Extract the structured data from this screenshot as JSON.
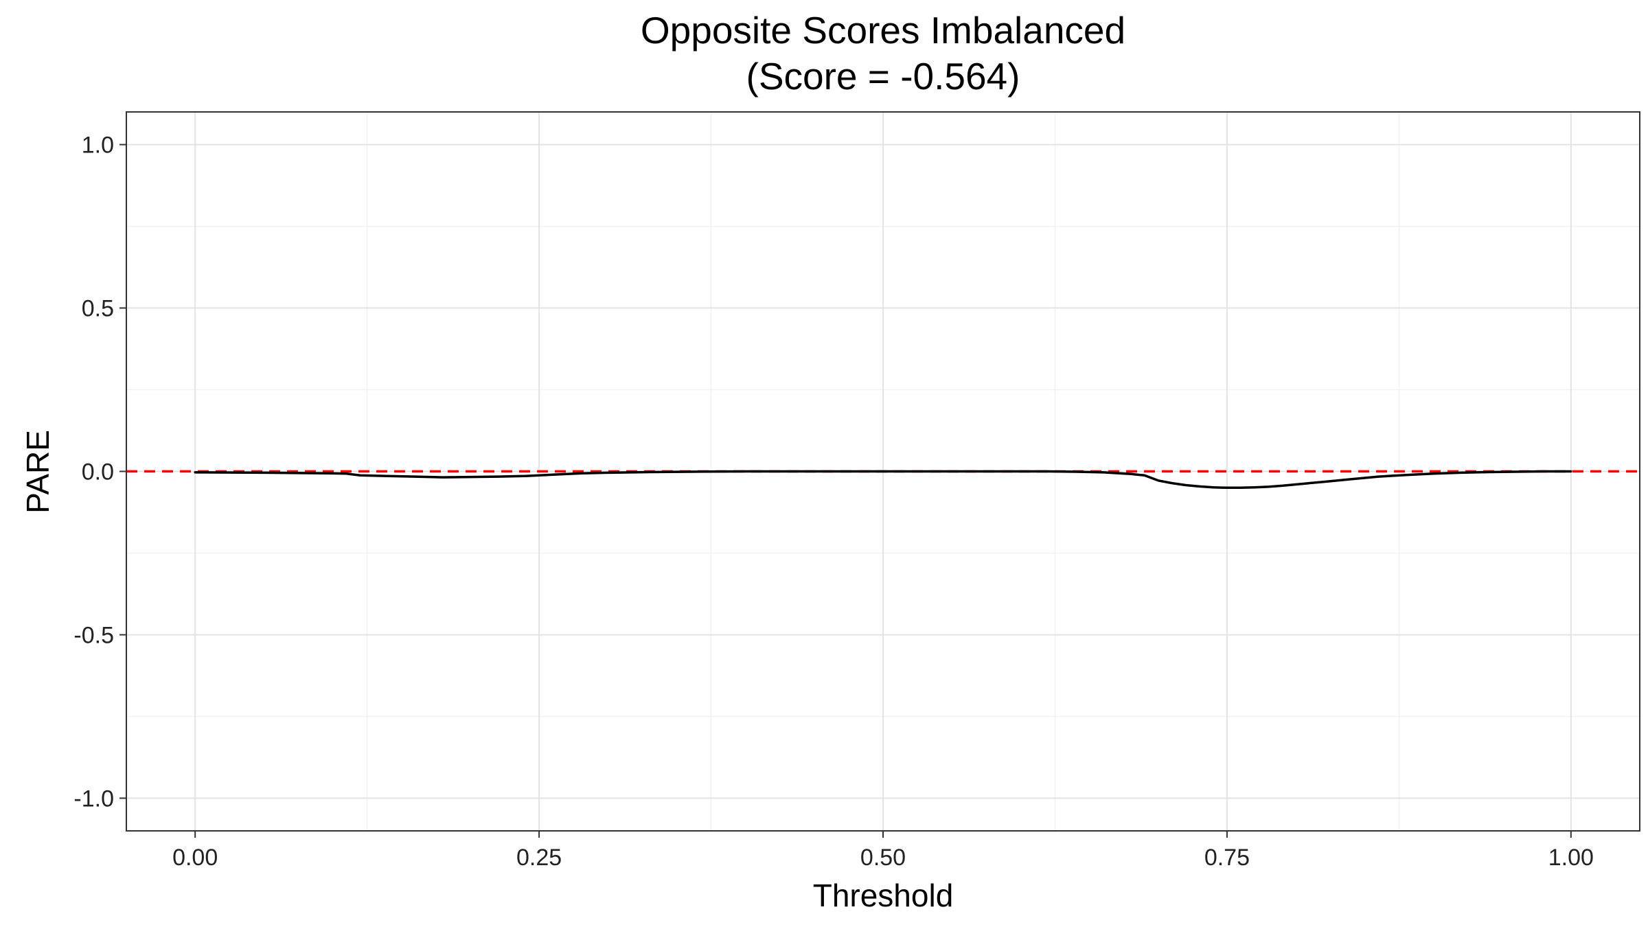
{
  "chart_data": {
    "type": "line",
    "title": "Opposite Scores Imbalanced",
    "subtitle": "(Score = -0.564)",
    "xlabel": "Threshold",
    "ylabel": "PARE",
    "xlim": [
      -0.05,
      1.05
    ],
    "ylim": [
      -1.1,
      1.1
    ],
    "x_ticks": [
      0.0,
      0.25,
      0.5,
      0.75,
      1.0
    ],
    "x_tick_labels": [
      "0.00",
      "0.25",
      "0.50",
      "0.75",
      "1.00"
    ],
    "y_ticks": [
      1.0,
      0.5,
      0.0,
      -0.5,
      -1.0
    ],
    "y_tick_labels": [
      "1.0",
      "0.5",
      "0.0",
      "-0.5",
      "-1.0"
    ],
    "x_minor_ticks": [
      0.125,
      0.375,
      0.625,
      0.875
    ],
    "y_minor_ticks": [
      0.75,
      0.25,
      -0.25,
      -0.75
    ],
    "grid": true,
    "series": [
      {
        "color": "#000000",
        "x": [
          0.0,
          0.05,
          0.1,
          0.11,
          0.12,
          0.14,
          0.16,
          0.18,
          0.2,
          0.22,
          0.24,
          0.26,
          0.28,
          0.3,
          0.33,
          0.36,
          0.4,
          0.45,
          0.5,
          0.55,
          0.6,
          0.62,
          0.64,
          0.66,
          0.68,
          0.69,
          0.7,
          0.71,
          0.72,
          0.73,
          0.74,
          0.75,
          0.76,
          0.77,
          0.78,
          0.79,
          0.8,
          0.82,
          0.84,
          0.86,
          0.88,
          0.9,
          0.92,
          0.94,
          0.96,
          0.98,
          1.0
        ],
        "y": [
          -0.003,
          -0.004,
          -0.006,
          -0.007,
          -0.012,
          -0.014,
          -0.016,
          -0.018,
          -0.017,
          -0.016,
          -0.014,
          -0.01,
          -0.006,
          -0.004,
          -0.002,
          -0.001,
          0.0,
          0.0,
          0.0,
          0.0,
          0.0,
          0.0,
          -0.001,
          -0.003,
          -0.008,
          -0.012,
          -0.028,
          -0.036,
          -0.042,
          -0.046,
          -0.049,
          -0.05,
          -0.05,
          -0.049,
          -0.047,
          -0.044,
          -0.04,
          -0.032,
          -0.024,
          -0.016,
          -0.011,
          -0.007,
          -0.004,
          -0.002,
          -0.001,
          0.0,
          0.0
        ]
      }
    ],
    "reference_line": {
      "y": 0.0,
      "color": "#ff0000",
      "style": "dashed"
    }
  }
}
